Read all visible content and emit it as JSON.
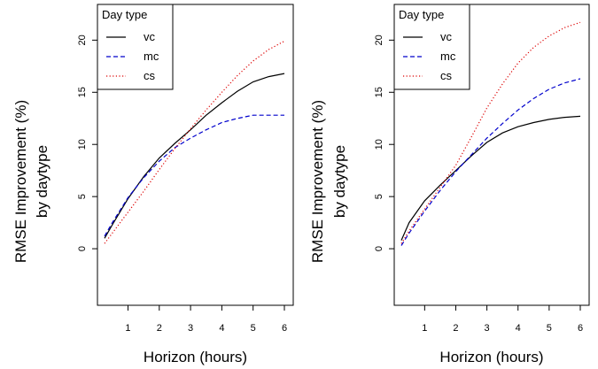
{
  "chart_data": [
    {
      "type": "line",
      "xlabel": "Horizon (hours)",
      "ylabel": [
        "RMSE Improvement (%)",
        "by daytype"
      ],
      "xlim": [
        0.25,
        6
      ],
      "ylim": [
        -5,
        23
      ],
      "xticks": [
        1,
        2,
        3,
        4,
        5,
        6
      ],
      "yticks": [
        0,
        5,
        10,
        15,
        20
      ],
      "legend": {
        "title": "Day type",
        "position": "top-left"
      },
      "series": [
        {
          "name": "vc",
          "color": "#000000",
          "dash": "solid",
          "x": [
            0.25,
            0.5,
            1,
            1.5,
            2,
            2.5,
            3,
            3.5,
            4,
            4.5,
            5,
            5.5,
            6
          ],
          "y": [
            1.0,
            2.3,
            4.8,
            6.9,
            8.7,
            10.1,
            11.4,
            12.8,
            14.0,
            15.1,
            16.0,
            16.5,
            16.8
          ]
        },
        {
          "name": "mc",
          "color": "#0000cc",
          "dash": "dashed",
          "x": [
            0.25,
            0.5,
            1,
            1.5,
            2,
            2.5,
            3,
            3.5,
            4,
            4.5,
            5,
            5.5,
            6
          ],
          "y": [
            1.2,
            2.5,
            4.9,
            6.8,
            8.4,
            9.7,
            10.6,
            11.4,
            12.1,
            12.5,
            12.8,
            12.8,
            12.8
          ]
        },
        {
          "name": "cs",
          "color": "#dd0000",
          "dash": "dotted",
          "x": [
            0.25,
            0.5,
            1,
            1.5,
            2,
            2.5,
            3,
            3.5,
            4,
            4.5,
            5,
            5.5,
            6
          ],
          "y": [
            0.5,
            1.5,
            3.5,
            5.5,
            7.6,
            9.6,
            11.5,
            13.3,
            15.0,
            16.6,
            18.0,
            19.1,
            19.9
          ]
        }
      ]
    },
    {
      "type": "line",
      "xlabel": "Horizon (hours)",
      "ylabel": [
        "RMSE Improvement (%)",
        "by daytype"
      ],
      "xlim": [
        0.25,
        6
      ],
      "ylim": [
        -5,
        23
      ],
      "xticks": [
        1,
        2,
        3,
        4,
        5,
        6
      ],
      "yticks": [
        0,
        5,
        10,
        15,
        20
      ],
      "legend": {
        "title": "Day type",
        "position": "top-left"
      },
      "series": [
        {
          "name": "vc",
          "color": "#000000",
          "dash": "solid",
          "x": [
            0.25,
            0.5,
            1,
            1.5,
            2,
            2.5,
            3,
            3.5,
            4,
            4.5,
            5,
            5.5,
            6
          ],
          "y": [
            0.8,
            2.5,
            4.6,
            6.1,
            7.5,
            8.9,
            10.2,
            11.1,
            11.7,
            12.1,
            12.4,
            12.6,
            12.7
          ]
        },
        {
          "name": "mc",
          "color": "#0000cc",
          "dash": "dashed",
          "x": [
            0.25,
            0.5,
            1,
            1.5,
            2,
            2.5,
            3,
            3.5,
            4,
            4.5,
            5,
            5.5,
            6
          ],
          "y": [
            0.3,
            1.5,
            3.6,
            5.6,
            7.4,
            9.0,
            10.6,
            12.0,
            13.3,
            14.4,
            15.3,
            15.9,
            16.3
          ]
        },
        {
          "name": "cs",
          "color": "#dd0000",
          "dash": "dotted",
          "x": [
            0.25,
            0.5,
            1,
            1.5,
            2,
            2.5,
            3,
            3.5,
            4,
            4.5,
            5,
            5.5,
            6
          ],
          "y": [
            0.5,
            1.7,
            3.8,
            5.9,
            8.0,
            10.7,
            13.5,
            15.8,
            17.8,
            19.3,
            20.4,
            21.2,
            21.7
          ]
        }
      ]
    }
  ]
}
